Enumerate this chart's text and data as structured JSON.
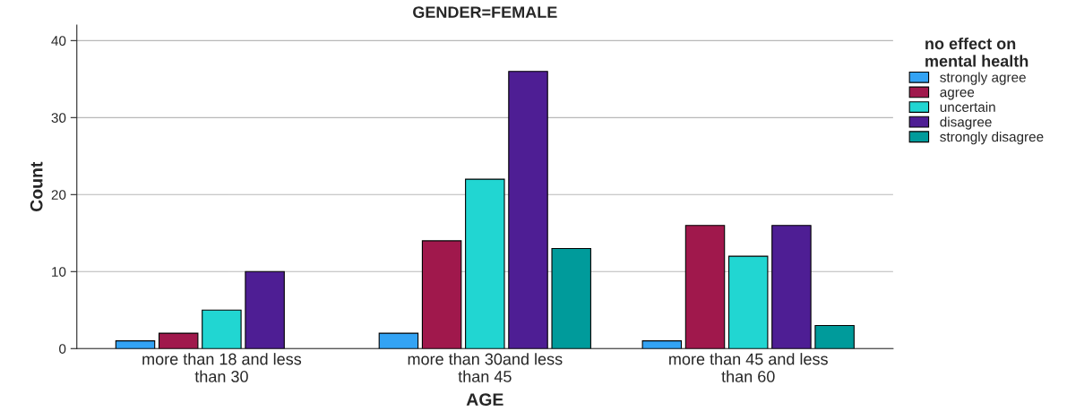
{
  "chart_data": {
    "type": "bar",
    "title": "GENDER=FEMALE",
    "xlabel": "AGE",
    "ylabel": "Count",
    "legend_title": "no effect on\nmental health",
    "categories": [
      "more than 18 and less\nthan 30",
      "more than 30and less\nthan 45",
      "more than 45 and less\nthan 60"
    ],
    "series": [
      {
        "name": "strongly agree",
        "color": "#33a3f4",
        "values": [
          1,
          2,
          1
        ]
      },
      {
        "name": "agree",
        "color": "#a0184c",
        "values": [
          2,
          14,
          16
        ]
      },
      {
        "name": "uncertain",
        "color": "#21d6d2",
        "values": [
          5,
          22,
          12
        ]
      },
      {
        "name": "disagree",
        "color": "#4e1e94",
        "values": [
          10,
          36,
          16
        ]
      },
      {
        "name": "strongly disagree",
        "color": "#009b9b",
        "values": [
          null,
          13,
          3
        ]
      }
    ],
    "ylim": [
      0,
      42
    ],
    "yticks": [
      0,
      10,
      20,
      30,
      40
    ],
    "grid": "y",
    "legend": "right"
  }
}
